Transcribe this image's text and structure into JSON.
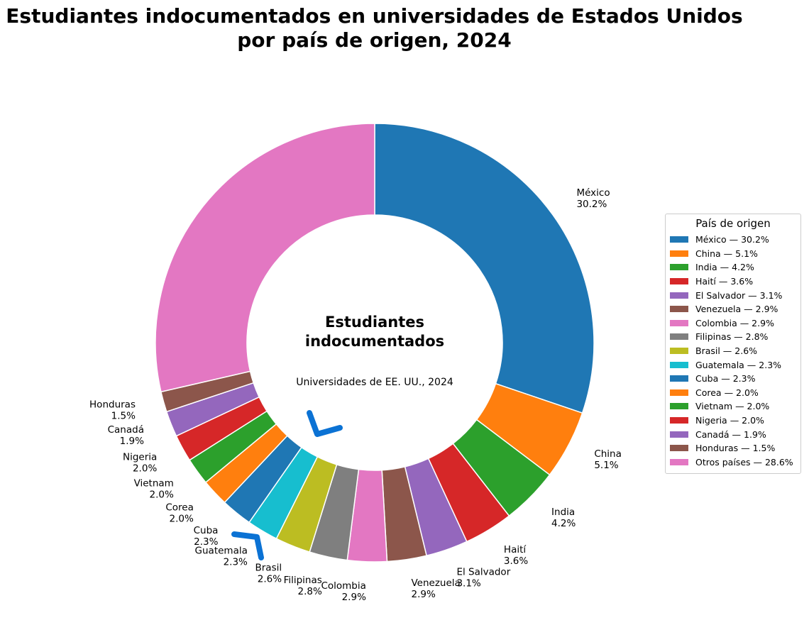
{
  "chart_data": {
    "type": "pie",
    "donut": true,
    "title_lines": [
      "Estudiantes indocumentados en universidades de Estados Unidos",
      "por país de origen, 2024"
    ],
    "center_title_lines": [
      "Estudiantes",
      "indocumentados"
    ],
    "center_subtitle": "Universidades de EE. UU., 2024",
    "legend_title": "País de origen",
    "legend_placement": "right",
    "slices": [
      {
        "label": "México",
        "value": 30.2,
        "value_label": "30.2%",
        "legend": "México — 30.2%",
        "color": "#1f77b4"
      },
      {
        "label": "China",
        "value": 5.1,
        "value_label": "5.1%",
        "legend": "China — 5.1%",
        "color": "#ff7f0e"
      },
      {
        "label": "India",
        "value": 4.2,
        "value_label": "4.2%",
        "legend": "India — 4.2%",
        "color": "#2ca02c"
      },
      {
        "label": "Haití",
        "value": 3.6,
        "value_label": "3.6%",
        "legend": "Haití — 3.6%",
        "color": "#d62728"
      },
      {
        "label": "El Salvador",
        "value": 3.1,
        "value_label": "3.1%",
        "legend": "El Salvador — 3.1%",
        "color": "#9467bd"
      },
      {
        "label": "Venezuela",
        "value": 2.9,
        "value_label": "2.9%",
        "legend": "Venezuela — 2.9%",
        "color": "#8c564b"
      },
      {
        "label": "Colombia",
        "value": 2.9,
        "value_label": "2.9%",
        "legend": "Colombia — 2.9%",
        "color": "#e377c2"
      },
      {
        "label": "Filipinas",
        "value": 2.8,
        "value_label": "2.8%",
        "legend": "Filipinas — 2.8%",
        "color": "#7f7f7f"
      },
      {
        "label": "Brasil",
        "value": 2.6,
        "value_label": "2.6%",
        "legend": "Brasil — 2.6%",
        "color": "#bcbd22"
      },
      {
        "label": "Guatemala",
        "value": 2.3,
        "value_label": "2.3%",
        "legend": "Guatemala — 2.3%",
        "color": "#17becf"
      },
      {
        "label": "Cuba",
        "value": 2.3,
        "value_label": "2.3%",
        "legend": "Cuba — 2.3%",
        "color": "#1f77b4"
      },
      {
        "label": "Corea",
        "value": 2.0,
        "value_label": "2.0%",
        "legend": "Corea — 2.0%",
        "color": "#ff7f0e"
      },
      {
        "label": "Vietnam",
        "value": 2.0,
        "value_label": "2.0%",
        "legend": "Vietnam — 2.0%",
        "color": "#2ca02c"
      },
      {
        "label": "Nigeria",
        "value": 2.0,
        "value_label": "2.0%",
        "legend": "Nigeria — 2.0%",
        "color": "#d62728"
      },
      {
        "label": "Canadá",
        "value": 1.9,
        "value_label": "1.9%",
        "legend": "Canadá — 1.9%",
        "color": "#9467bd"
      },
      {
        "label": "Honduras",
        "value": 1.5,
        "value_label": "1.5%",
        "legend": "Honduras — 1.5%",
        "color": "#8c564b"
      },
      {
        "label": "Otros países",
        "value": 28.6,
        "value_label": "",
        "legend": "Otros países — 28.6%",
        "color": "#e377c2"
      }
    ],
    "annotations": [
      {
        "type": "arrow",
        "color": "#0b72d4",
        "points_to": "Guatemala"
      },
      {
        "type": "arrow",
        "color": "#0b72d4",
        "points_to": "Guatemala"
      }
    ]
  }
}
